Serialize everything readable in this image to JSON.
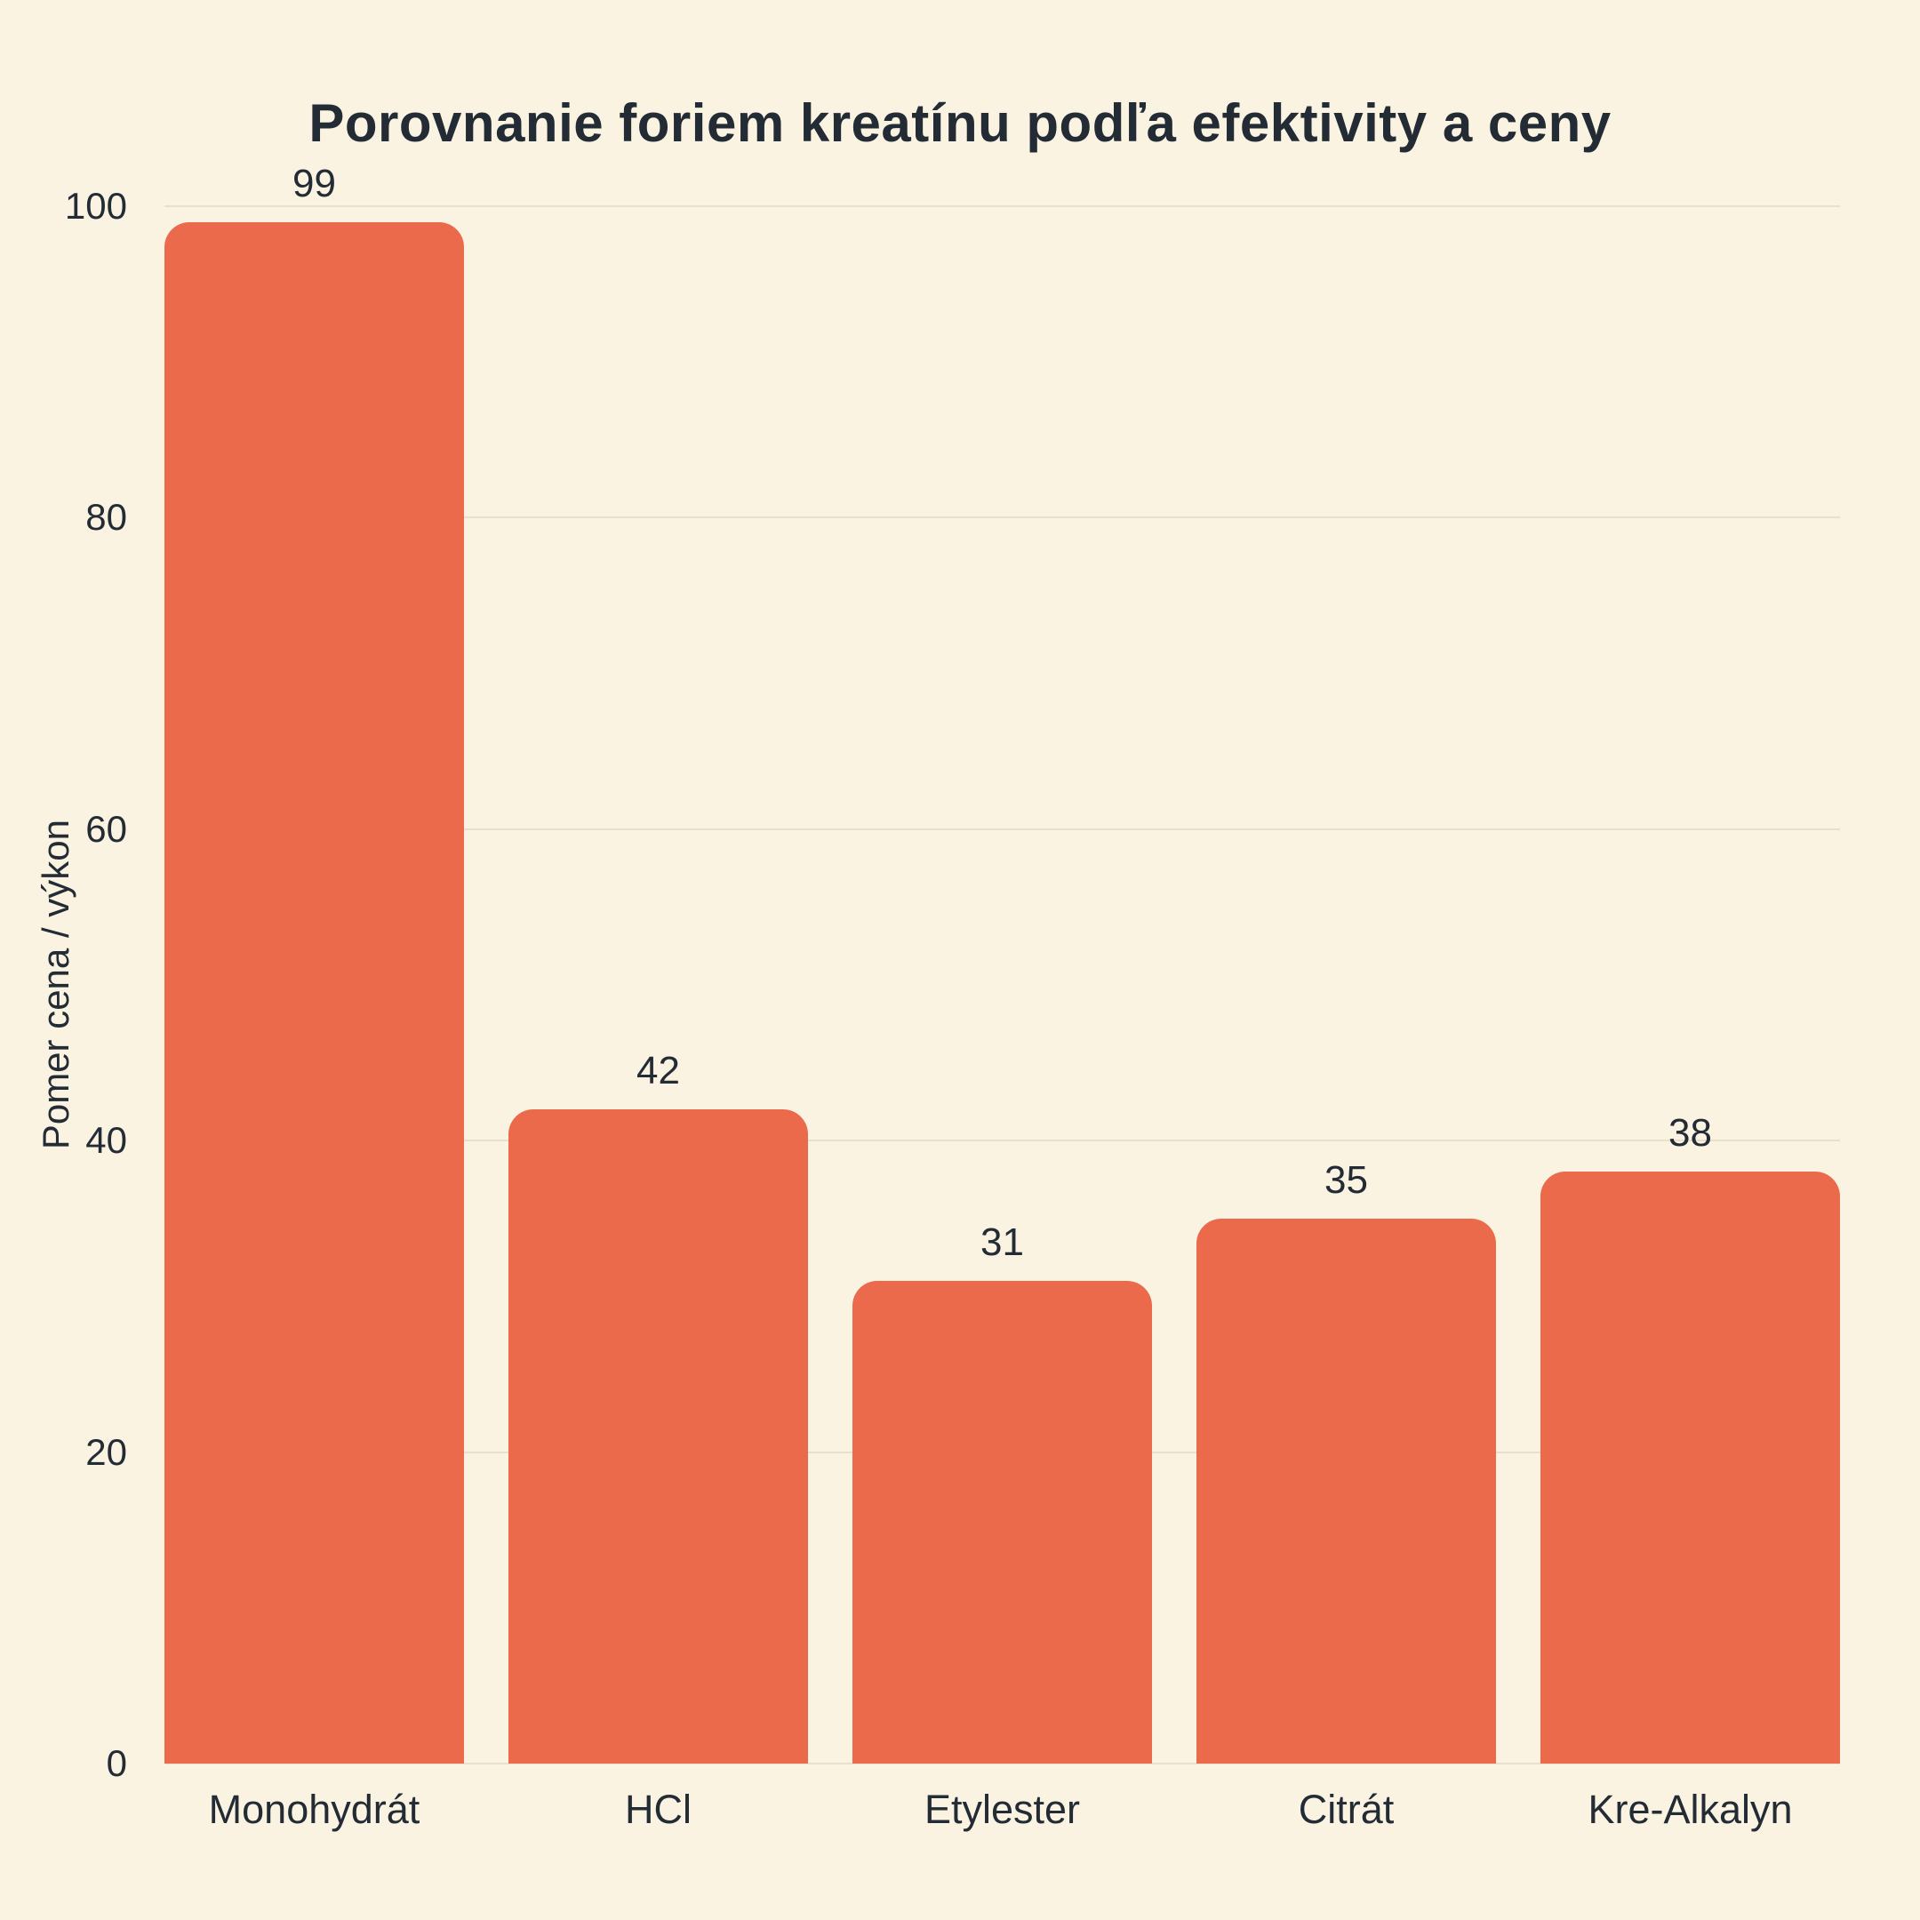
{
  "chart_data": {
    "type": "bar",
    "title": "Porovnanie foriem kreatínu podľa efektivity a ceny",
    "categories": [
      "Monohydrát",
      "HCl",
      "Etylester",
      "Citrát",
      "Kre-Alkalyn"
    ],
    "values": [
      99,
      42,
      31,
      35,
      38
    ],
    "xlabel": "",
    "ylabel": "Pomer cena / výkon",
    "ylim": [
      0,
      100
    ],
    "yticks": [
      0,
      20,
      40,
      60,
      80,
      100
    ],
    "grid": true,
    "legend": false,
    "colors": {
      "background": "#FBF3E2",
      "bar": "#EB6A4B",
      "text": "#232B35",
      "gridline": "#E8E0CC"
    }
  }
}
